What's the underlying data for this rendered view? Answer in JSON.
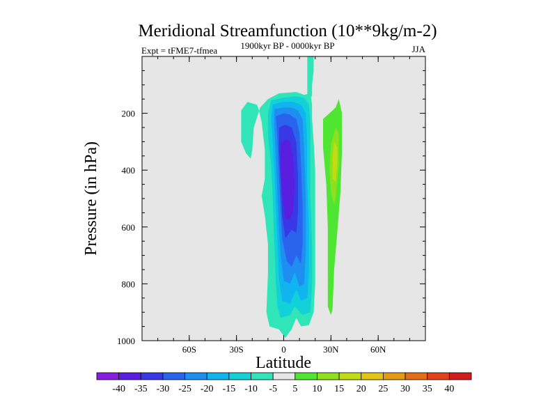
{
  "chart_data": {
    "type": "contour",
    "title": "Meridional Streamfunction (10**9kg/m-2)",
    "subtitle_left": "Expt = tFME7-tfmea",
    "subtitle_center": "1900kyr BP - 0000kyr BP",
    "subtitle_right": "JJA",
    "xlabel": "Latitude",
    "ylabel": "Pressure (in hPa)",
    "xlim": [
      -90,
      90
    ],
    "ylim": [
      1000,
      0
    ],
    "x_ticks": [
      {
        "value": -60,
        "label": "60S"
      },
      {
        "value": -30,
        "label": "30S"
      },
      {
        "value": 0,
        "label": "0"
      },
      {
        "value": 30,
        "label": "30N"
      },
      {
        "value": 60,
        "label": "60N"
      }
    ],
    "y_ticks": [
      {
        "value": 200,
        "label": "200"
      },
      {
        "value": 400,
        "label": "400"
      },
      {
        "value": 600,
        "label": "600"
      },
      {
        "value": 800,
        "label": "800"
      },
      {
        "value": 1000,
        "label": "1000"
      }
    ],
    "colorbar": {
      "labels": [
        "-40",
        "-35",
        "-30",
        "-25",
        "-20",
        "-15",
        "-10",
        "-5",
        "5",
        "10",
        "15",
        "20",
        "25",
        "30",
        "35",
        "40"
      ],
      "colors": [
        "#8a1ee0",
        "#5a1ee0",
        "#3838e6",
        "#2a64ee",
        "#1e8ef0",
        "#10b4ee",
        "#12d2d8",
        "#30e6b8",
        "#e6e6e6",
        "#4ee632",
        "#8ee01c",
        "#c2dc14",
        "#e4c414",
        "#e49a14",
        "#e46e14",
        "#e4401a",
        "#d41c1c"
      ]
    },
    "field": {
      "description_colors_by_level": "levels index into colorbar.colors",
      "regions": [
        {
          "level": 7,
          "points": [
            [
              -27,
              190
            ],
            [
              -23,
              160
            ],
            [
              -17,
              170
            ],
            [
              -16,
              185
            ],
            [
              -14,
              230
            ],
            [
              -12,
              330
            ],
            [
              -12,
              430
            ],
            [
              -14,
              490
            ],
            [
              -12,
              560
            ],
            [
              -10,
              660
            ],
            [
              -10,
              760
            ],
            [
              -11,
              900
            ],
            [
              -9,
              950
            ],
            [
              -3,
              960
            ],
            [
              1,
              990
            ],
            [
              5,
              960
            ],
            [
              8,
              920
            ],
            [
              11,
              950
            ],
            [
              16,
              945
            ],
            [
              19,
              900
            ],
            [
              20,
              800
            ],
            [
              20,
              600
            ],
            [
              20,
              400
            ],
            [
              19,
              300
            ],
            [
              18,
              220
            ],
            [
              18,
              170
            ],
            [
              17,
              130
            ],
            [
              13,
              135
            ],
            [
              8,
              125
            ],
            [
              -3,
              130
            ],
            [
              -10,
              150
            ],
            [
              -15,
              180
            ],
            [
              -19,
              250
            ],
            [
              -20,
              330
            ],
            [
              -21,
              360
            ],
            [
              -24,
              340
            ],
            [
              -27,
              300
            ]
          ]
        },
        {
          "level": 7,
          "points": [
            [
              15,
              0
            ],
            [
              19,
              0
            ],
            [
              19,
              50
            ],
            [
              18,
              100
            ],
            [
              18,
              140
            ],
            [
              15,
              150
            ],
            [
              15,
              100
            ],
            [
              15,
              50
            ]
          ]
        },
        {
          "level": 6,
          "points": [
            [
              -8,
              155
            ],
            [
              -1,
              145
            ],
            [
              8,
              140
            ],
            [
              13,
              145
            ],
            [
              16,
              170
            ],
            [
              17,
              230
            ],
            [
              17,
              350
            ],
            [
              17,
              500
            ],
            [
              18,
              650
            ],
            [
              18,
              800
            ],
            [
              17,
              900
            ],
            [
              12,
              910
            ],
            [
              7,
              880
            ],
            [
              4,
              910
            ],
            [
              -2,
              920
            ],
            [
              -4,
              880
            ],
            [
              -5,
              800
            ],
            [
              -6,
              650
            ],
            [
              -7,
              500
            ],
            [
              -8,
              380
            ],
            [
              -10,
              280
            ],
            [
              -10,
              200
            ]
          ]
        },
        {
          "level": 5,
          "points": [
            [
              -7,
              170
            ],
            [
              -1,
              160
            ],
            [
              6,
              160
            ],
            [
              11,
              170
            ],
            [
              14,
              200
            ],
            [
              15,
              300
            ],
            [
              15,
              450
            ],
            [
              16,
              600
            ],
            [
              16,
              750
            ],
            [
              15,
              850
            ],
            [
              11,
              860
            ],
            [
              8,
              820
            ],
            [
              4,
              870
            ],
            [
              -1,
              860
            ],
            [
              -3,
              780
            ],
            [
              -4,
              650
            ],
            [
              -5,
              520
            ],
            [
              -6,
              400
            ],
            [
              -7,
              300
            ],
            [
              -8,
              220
            ]
          ]
        },
        {
          "level": 4,
          "points": [
            [
              -6,
              185
            ],
            [
              0,
              180
            ],
            [
              5,
              180
            ],
            [
              9,
              190
            ],
            [
              12,
              220
            ],
            [
              13,
              330
            ],
            [
              14,
              500
            ],
            [
              14,
              680
            ],
            [
              13,
              800
            ],
            [
              10,
              810
            ],
            [
              7,
              760
            ],
            [
              4,
              800
            ],
            [
              0,
              790
            ],
            [
              -2,
              700
            ],
            [
              -3,
              600
            ],
            [
              -4,
              480
            ],
            [
              -5,
              360
            ],
            [
              -6,
              250
            ]
          ]
        },
        {
          "level": 3,
          "points": [
            [
              -5,
              210
            ],
            [
              0,
              200
            ],
            [
              4,
              205
            ],
            [
              8,
              220
            ],
            [
              10,
              270
            ],
            [
              11,
              380
            ],
            [
              12,
              530
            ],
            [
              12,
              660
            ],
            [
              11,
              730
            ],
            [
              8,
              700
            ],
            [
              5,
              740
            ],
            [
              2,
              720
            ],
            [
              -1,
              640
            ],
            [
              -2,
              540
            ],
            [
              -3,
              420
            ],
            [
              -4,
              300
            ]
          ]
        },
        {
          "level": 2,
          "points": [
            [
              -3,
              250
            ],
            [
              1,
              240
            ],
            [
              5,
              250
            ],
            [
              8,
              300
            ],
            [
              9,
              420
            ],
            [
              9,
              550
            ],
            [
              8,
              620
            ],
            [
              5,
              610
            ],
            [
              1,
              640
            ],
            [
              -1,
              560
            ],
            [
              -2,
              440
            ],
            [
              -3,
              330
            ]
          ]
        },
        {
          "level": 1,
          "points": [
            [
              -2,
              310
            ],
            [
              1,
              290
            ],
            [
              4,
              300
            ],
            [
              6,
              360
            ],
            [
              7,
              450
            ],
            [
              6,
              540
            ],
            [
              4,
              575
            ],
            [
              1,
              570
            ],
            [
              -1,
              480
            ],
            [
              -2,
              390
            ]
          ]
        },
        {
          "level": 9,
          "points": [
            [
              25,
              220
            ],
            [
              29,
              200
            ],
            [
              33,
              180
            ],
            [
              35,
              150
            ],
            [
              37,
              200
            ],
            [
              37,
              330
            ],
            [
              36,
              480
            ],
            [
              34,
              620
            ],
            [
              32,
              750
            ],
            [
              31,
              890
            ],
            [
              30,
              910
            ],
            [
              28,
              880
            ],
            [
              28,
              760
            ],
            [
              28,
              600
            ],
            [
              27,
              450
            ],
            [
              25,
              320
            ],
            [
              25,
              250
            ]
          ]
        },
        {
          "level": 10,
          "points": [
            [
              30,
              310
            ],
            [
              33,
              250
            ],
            [
              35,
              270
            ],
            [
              35,
              380
            ],
            [
              33,
              500
            ],
            [
              32,
              520
            ],
            [
              30,
              480
            ],
            [
              29,
              400
            ]
          ]
        },
        {
          "level": 11,
          "points": [
            [
              32,
              300
            ],
            [
              34,
              320
            ],
            [
              34,
              380
            ],
            [
              33,
              440
            ],
            [
              31,
              430
            ],
            [
              31,
              360
            ]
          ]
        }
      ]
    }
  }
}
